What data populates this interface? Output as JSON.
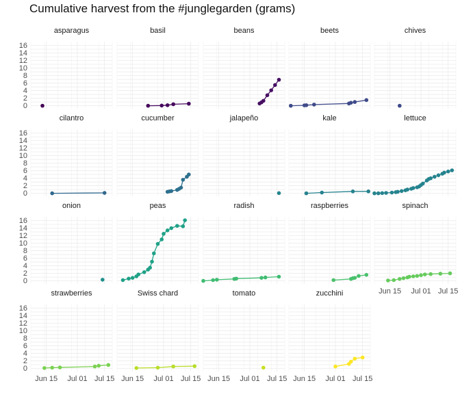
{
  "chart_data": {
    "type": "line",
    "title": "Cumulative harvest from the #junglegarden (grams)",
    "facet_by": "vegetable",
    "layout": "5 columns x 4 rows (small multiples)",
    "xlabel": "",
    "ylabel": "",
    "x_ticks": [
      "Jun 15",
      "Jul 01",
      "Jul 15"
    ],
    "x_tick_values": [
      "2020-06-15",
      "2020-07-01",
      "2020-07-15"
    ],
    "xlim": [
      "2020-06-07",
      "2020-07-19"
    ],
    "y_ticks": [
      0,
      1,
      2,
      3,
      4,
      5,
      6,
      7,
      8,
      9,
      10,
      11,
      12,
      13,
      14,
      15,
      16
    ],
    "y_tick_labels": [
      "0",
      "",
      "2",
      "",
      "4",
      "",
      "6",
      "",
      "8",
      "",
      "10",
      "",
      "12",
      "",
      "14",
      "",
      "16"
    ],
    "ylim": [
      -0.8,
      17
    ],
    "y_units_note": "",
    "grid": true,
    "legend": "none",
    "colormap": "viridis",
    "panels": [
      {
        "name": "asparagus",
        "color": "#440154",
        "points": [
          [
            "2020-06-13",
            0.0
          ]
        ]
      },
      {
        "name": "basil",
        "color": "#46085c",
        "points": [
          [
            "2020-06-23",
            0.0
          ],
          [
            "2020-06-30",
            0.05
          ],
          [
            "2020-07-03",
            0.15
          ],
          [
            "2020-07-06",
            0.4
          ],
          [
            "2020-07-14",
            0.55
          ]
        ]
      },
      {
        "name": "beans",
        "color": "#471063",
        "points": [
          [
            "2020-07-06",
            0.6
          ],
          [
            "2020-07-07",
            0.9
          ],
          [
            "2020-07-08",
            1.3
          ],
          [
            "2020-07-10",
            2.8
          ],
          [
            "2020-07-12",
            4.1
          ],
          [
            "2020-07-14",
            5.5
          ],
          [
            "2020-07-16",
            6.9
          ]
        ]
      },
      {
        "name": "beets",
        "color": "#3e4a89",
        "points": [
          [
            "2020-06-08",
            0.0
          ],
          [
            "2020-06-15",
            0.1
          ],
          [
            "2020-06-16",
            0.15
          ],
          [
            "2020-06-20",
            0.3
          ],
          [
            "2020-07-08",
            0.6
          ],
          [
            "2020-07-09",
            0.8
          ],
          [
            "2020-07-11",
            1.0
          ],
          [
            "2020-07-17",
            1.5
          ]
        ]
      },
      {
        "name": "chives",
        "color": "#3d4a89",
        "points": [
          [
            "2020-06-20",
            0.0
          ]
        ]
      },
      {
        "name": "cilantro",
        "color": "#30688e",
        "points": [
          [
            "2020-06-18",
            0.0
          ],
          [
            "2020-07-15",
            0.1
          ]
        ]
      },
      {
        "name": "cucumber",
        "color": "#2d708e",
        "points": [
          [
            "2020-07-03",
            0.4
          ],
          [
            "2020-07-04",
            0.5
          ],
          [
            "2020-07-05",
            0.6
          ],
          [
            "2020-07-08",
            0.9
          ],
          [
            "2020-07-09",
            1.2
          ],
          [
            "2020-07-10",
            1.5
          ],
          [
            "2020-07-11",
            3.6
          ],
          [
            "2020-07-13",
            4.4
          ],
          [
            "2020-07-14",
            5.0
          ]
        ]
      },
      {
        "name": "jalapeño",
        "color": "#25858e",
        "points": [
          [
            "2020-07-16",
            0.05
          ]
        ]
      },
      {
        "name": "kale",
        "color": "#26828e",
        "points": [
          [
            "2020-06-16",
            0.0
          ],
          [
            "2020-06-24",
            0.2
          ],
          [
            "2020-07-10",
            0.5
          ],
          [
            "2020-07-18",
            0.5
          ]
        ]
      },
      {
        "name": "lettuce",
        "color": "#25838e",
        "points": [
          [
            "2020-06-07",
            0.0
          ],
          [
            "2020-06-09",
            0.0
          ],
          [
            "2020-06-11",
            0.05
          ],
          [
            "2020-06-13",
            0.1
          ],
          [
            "2020-06-16",
            0.2
          ],
          [
            "2020-06-18",
            0.3
          ],
          [
            "2020-06-19",
            0.4
          ],
          [
            "2020-06-21",
            0.6
          ],
          [
            "2020-06-23",
            0.8
          ],
          [
            "2020-06-24",
            1.0
          ],
          [
            "2020-06-26",
            1.2
          ],
          [
            "2020-06-27",
            1.4
          ],
          [
            "2020-06-29",
            1.6
          ],
          [
            "2020-06-30",
            1.8
          ],
          [
            "2020-07-01",
            2.2
          ],
          [
            "2020-07-02",
            2.6
          ],
          [
            "2020-07-04",
            3.4
          ],
          [
            "2020-07-05",
            3.8
          ],
          [
            "2020-07-06",
            4.0
          ],
          [
            "2020-07-08",
            4.4
          ],
          [
            "2020-07-10",
            4.8
          ],
          [
            "2020-07-12",
            5.2
          ],
          [
            "2020-07-13",
            5.5
          ],
          [
            "2020-07-15",
            5.8
          ],
          [
            "2020-07-17",
            6.1
          ]
        ]
      },
      {
        "name": "onion",
        "color": "#21908d",
        "points": [
          [
            "2020-07-14",
            0.3
          ]
        ]
      },
      {
        "name": "peas",
        "color": "#1fa187",
        "points": [
          [
            "2020-06-10",
            0.2
          ],
          [
            "2020-06-13",
            0.6
          ],
          [
            "2020-06-15",
            0.8
          ],
          [
            "2020-06-17",
            1.2
          ],
          [
            "2020-06-18",
            1.7
          ],
          [
            "2020-06-21",
            2.3
          ],
          [
            "2020-06-23",
            3.0
          ],
          [
            "2020-06-24",
            3.5
          ],
          [
            "2020-06-25",
            5.1
          ],
          [
            "2020-06-26",
            7.3
          ],
          [
            "2020-06-28",
            9.8
          ],
          [
            "2020-06-30",
            11.0
          ],
          [
            "2020-07-01",
            12.5
          ],
          [
            "2020-07-03",
            13.4
          ],
          [
            "2020-07-05",
            14.0
          ],
          [
            "2020-07-08",
            14.6
          ],
          [
            "2020-07-11",
            14.5
          ],
          [
            "2020-07-12",
            16.1
          ]
        ]
      },
      {
        "name": "radish",
        "color": "#40bc72",
        "points": [
          [
            "2020-06-07",
            0.0
          ],
          [
            "2020-06-12",
            0.2
          ],
          [
            "2020-06-14",
            0.3
          ],
          [
            "2020-06-23",
            0.5
          ],
          [
            "2020-06-24",
            0.6
          ],
          [
            "2020-07-07",
            0.8
          ],
          [
            "2020-07-09",
            0.9
          ],
          [
            "2020-07-16",
            1.1
          ]
        ]
      },
      {
        "name": "raspberries",
        "color": "#4ac16d",
        "points": [
          [
            "2020-06-30",
            0.2
          ],
          [
            "2020-07-09",
            0.5
          ],
          [
            "2020-07-10",
            0.7
          ],
          [
            "2020-07-11",
            0.8
          ],
          [
            "2020-07-13",
            1.3
          ],
          [
            "2020-07-17",
            1.6
          ]
        ]
      },
      {
        "name": "spinach",
        "color": "#66cb5d",
        "points": [
          [
            "2020-06-14",
            0.1
          ],
          [
            "2020-06-17",
            0.2
          ],
          [
            "2020-06-20",
            0.5
          ],
          [
            "2020-06-22",
            0.7
          ],
          [
            "2020-06-24",
            0.9
          ],
          [
            "2020-06-25",
            1.1
          ],
          [
            "2020-06-27",
            1.2
          ],
          [
            "2020-06-29",
            1.3
          ],
          [
            "2020-07-01",
            1.5
          ],
          [
            "2020-07-03",
            1.7
          ],
          [
            "2020-07-06",
            1.8
          ],
          [
            "2020-07-11",
            1.9
          ],
          [
            "2020-07-16",
            2.0
          ]
        ]
      },
      {
        "name": "strawberries",
        "color": "#7ad151",
        "points": [
          [
            "2020-06-14",
            0.1
          ],
          [
            "2020-06-18",
            0.2
          ],
          [
            "2020-06-22",
            0.25
          ],
          [
            "2020-07-10",
            0.5
          ],
          [
            "2020-07-12",
            0.7
          ],
          [
            "2020-07-17",
            0.9
          ]
        ]
      },
      {
        "name": "Swiss chard",
        "color": "#b8de29",
        "points": [
          [
            "2020-06-17",
            0.1
          ],
          [
            "2020-06-28",
            0.2
          ],
          [
            "2020-07-06",
            0.5
          ],
          [
            "2020-07-17",
            0.6
          ]
        ]
      },
      {
        "name": "tomato",
        "color": "#c8e020",
        "points": [
          [
            "2020-07-08",
            0.2
          ]
        ]
      },
      {
        "name": "zucchini",
        "color": "#fde725",
        "points": [
          [
            "2020-07-01",
            0.5
          ],
          [
            "2020-07-08",
            1.2
          ],
          [
            "2020-07-09",
            1.8
          ],
          [
            "2020-07-11",
            2.6
          ],
          [
            "2020-07-15",
            2.9
          ]
        ]
      }
    ]
  }
}
